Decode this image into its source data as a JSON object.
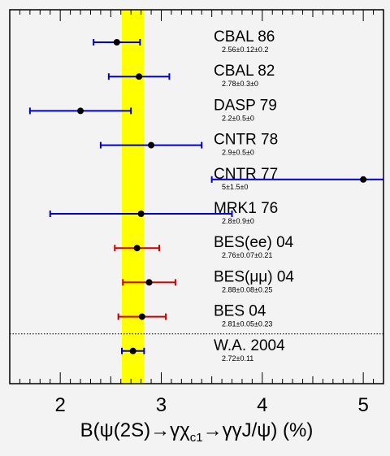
{
  "chart_data": {
    "type": "scatter",
    "title": "",
    "xlabel": "B(ψ(2S)→γχc1→γγJ/ψ) (%)",
    "xlim": [
      1.5,
      5.2
    ],
    "xticks": [
      "2",
      "3",
      "4",
      "5"
    ],
    "grid": false,
    "band": {
      "low": 2.61,
      "high": 2.83,
      "color": "#ffff00"
    },
    "colors": {
      "old": "#0000cc",
      "new": "#cc0000",
      "average": "#0000cc",
      "marker": "#000000"
    },
    "points": [
      {
        "name": "CBAL 86",
        "value_text": "2.56±0.12±0.2",
        "value": 2.56,
        "err_lo": 0.23,
        "err_hi": 0.23,
        "group": "old"
      },
      {
        "name": "CBAL 82",
        "value_text": "2.78±0.3±0",
        "value": 2.78,
        "err_lo": 0.3,
        "err_hi": 0.3,
        "group": "old"
      },
      {
        "name": "DASP 79",
        "value_text": "2.2±0.5±0",
        "value": 2.2,
        "err_lo": 0.5,
        "err_hi": 0.5,
        "group": "old"
      },
      {
        "name": "CNTR 78",
        "value_text": "2.9±0.5±0",
        "value": 2.9,
        "err_lo": 0.5,
        "err_hi": 0.5,
        "group": "old"
      },
      {
        "name": "CNTR 77",
        "value_text": "5±1.5±0",
        "value": 5.0,
        "err_lo": 1.5,
        "err_hi": 1.5,
        "group": "old"
      },
      {
        "name": "MRK1 76",
        "value_text": "2.8±0.9±0",
        "value": 2.8,
        "err_lo": 0.9,
        "err_hi": 0.9,
        "group": "old"
      },
      {
        "name": "BES(ee) 04",
        "value_text": "2.76±0.07±0.21",
        "value": 2.76,
        "err_lo": 0.22,
        "err_hi": 0.22,
        "group": "new"
      },
      {
        "name": "BES(μμ) 04",
        "value_text": "2.88±0.08±0.25",
        "value": 2.88,
        "err_lo": 0.26,
        "err_hi": 0.26,
        "group": "new"
      },
      {
        "name": "BES 04",
        "value_text": "2.81±0.05±0.23",
        "value": 2.81,
        "err_lo": 0.235,
        "err_hi": 0.235,
        "group": "new"
      },
      {
        "name": "W.A. 2004",
        "value_text": "2.72±0.11",
        "value": 2.72,
        "err_lo": 0.11,
        "err_hi": 0.11,
        "group": "average"
      }
    ]
  }
}
